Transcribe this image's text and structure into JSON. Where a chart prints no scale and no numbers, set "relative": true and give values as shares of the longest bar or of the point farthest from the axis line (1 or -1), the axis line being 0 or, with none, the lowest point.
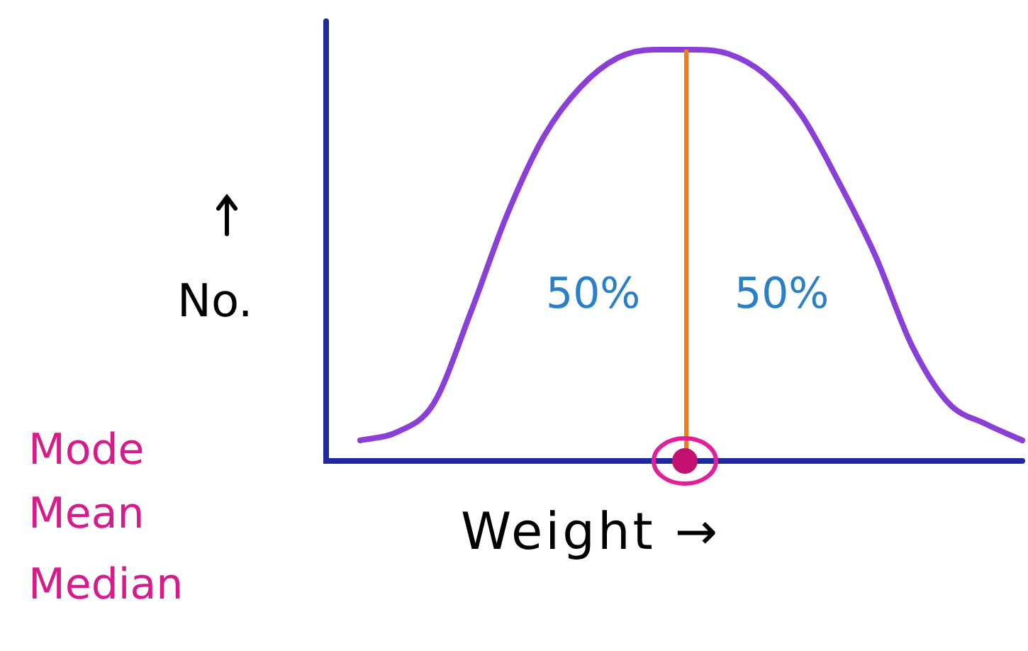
{
  "chart_data": {
    "type": "line",
    "relative": true,
    "xlabel": "Weight →",
    "ylabel": "No.",
    "legend": false,
    "marker": "none",
    "line_style": "solid",
    "categories": [
      null,
      null,
      null,
      null,
      null,
      null,
      null,
      null,
      null,
      null,
      null,
      null,
      null,
      null,
      null,
      null,
      null,
      null,
      null
    ],
    "series": [
      {
        "color": "#8a3fd6",
        "values": [
          0.05,
          0.07,
          0.14,
          0.36,
          0.6,
          0.79,
          0.91,
          0.98,
          1,
          1,
          0.99,
          0.94,
          0.84,
          0.68,
          0.5,
          0.28,
          0.14,
          0.09,
          0.05
        ]
      }
    ],
    "annotations": [
      "50%",
      "50%",
      "Mode",
      "Mean",
      "Median"
    ]
  }
}
